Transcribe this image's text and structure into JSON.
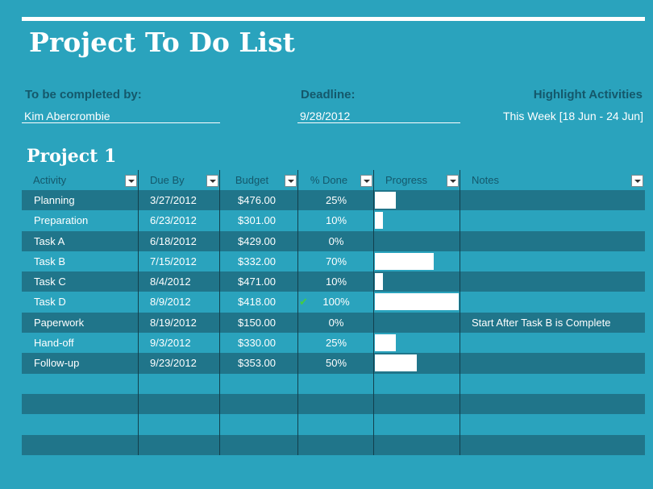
{
  "page": {
    "title": "Project To Do List",
    "completed_by_label": "To be completed by:",
    "completed_by_value": "Kim Abercrombie",
    "deadline_label": "Deadline:",
    "deadline_value": "9/28/2012",
    "highlight_label": "Highlight Activities",
    "highlight_value": "This Week [18 Jun - 24 Jun]",
    "section_title": "Project 1"
  },
  "table": {
    "headers": {
      "activity": "Activity",
      "due_by": "Due By",
      "budget": "Budget",
      "pct_done": "% Done",
      "progress": "Progress",
      "notes": "Notes"
    },
    "rows": [
      {
        "activity": "Planning",
        "due": "3/27/2012",
        "budget": "$476.00",
        "pct": "25%",
        "progress": 0.25,
        "notes": "",
        "check": false
      },
      {
        "activity": "Preparation",
        "due": "6/23/2012",
        "budget": "$301.00",
        "pct": "10%",
        "progress": 0.1,
        "notes": "",
        "check": false
      },
      {
        "activity": "Task A",
        "due": "6/18/2012",
        "budget": "$429.00",
        "pct": "0%",
        "progress": 0,
        "notes": "",
        "check": false
      },
      {
        "activity": "Task B",
        "due": "7/15/2012",
        "budget": "$332.00",
        "pct": "70%",
        "progress": 0.7,
        "notes": "",
        "check": false
      },
      {
        "activity": "Task C",
        "due": "8/4/2012",
        "budget": "$471.00",
        "pct": "10%",
        "progress": 0.1,
        "notes": "",
        "check": false
      },
      {
        "activity": "Task D",
        "due": "8/9/2012",
        "budget": "$418.00",
        "pct": "100%",
        "progress": 1.0,
        "notes": "",
        "check": true
      },
      {
        "activity": "Paperwork",
        "due": "8/19/2012",
        "budget": "$150.00",
        "pct": "0%",
        "progress": 0,
        "notes": "Start After Task B is Complete",
        "check": false
      },
      {
        "activity": "Hand-off",
        "due": "9/3/2012",
        "budget": "$330.00",
        "pct": "25%",
        "progress": 0.25,
        "notes": "",
        "check": false
      },
      {
        "activity": "Follow-up",
        "due": "9/23/2012",
        "budget": "$353.00",
        "pct": "50%",
        "progress": 0.5,
        "notes": "",
        "check": false
      }
    ]
  },
  "colors": {
    "background": "#2aa3bd",
    "band_dark": "#20758a",
    "header_text": "#14586b",
    "check": "#44cc44"
  },
  "icons": {
    "check": "check-icon",
    "filter": "dropdown-filter-icon"
  }
}
